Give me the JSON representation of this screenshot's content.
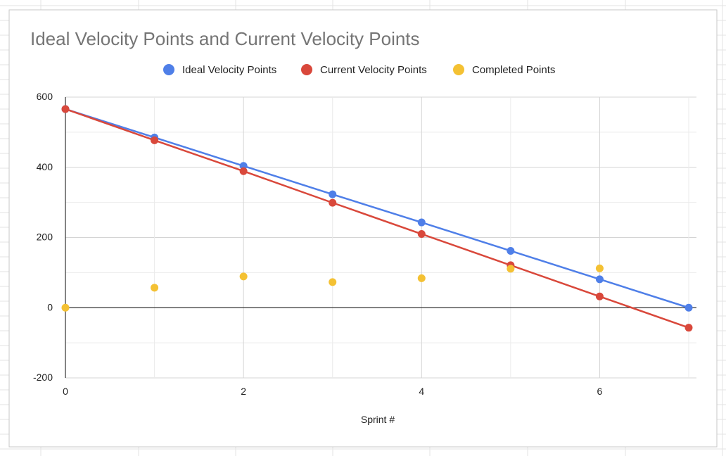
{
  "chart_data": {
    "type": "line",
    "title": "Ideal Velocity Points and Current Velocity Points",
    "xlabel": "Sprint #",
    "ylabel": "",
    "xlim": [
      0,
      7
    ],
    "ylim": [
      -200,
      600
    ],
    "x_ticks": [
      0,
      2,
      4,
      6
    ],
    "y_ticks": [
      -200,
      0,
      200,
      400,
      600
    ],
    "grid": true,
    "legend_position": "top",
    "series": [
      {
        "name": "Ideal Velocity Points",
        "color": "#4f7fe8",
        "mode": "line+markers",
        "x": [
          0,
          1,
          2,
          3,
          4,
          5,
          6,
          7
        ],
        "values": [
          566,
          485,
          404,
          323,
          243,
          162,
          81,
          0
        ]
      },
      {
        "name": "Current Velocity Points",
        "color": "#d9483b",
        "mode": "line+markers",
        "x": [
          0,
          1,
          2,
          3,
          4,
          5,
          6,
          7
        ],
        "values": [
          566,
          477,
          389,
          299,
          210,
          121,
          32,
          -57
        ]
      },
      {
        "name": "Completed Points",
        "color": "#f4c133",
        "mode": "markers",
        "x": [
          0,
          1,
          2,
          3,
          4,
          5,
          6
        ],
        "values": [
          0,
          57,
          89,
          73,
          84,
          111,
          112
        ]
      }
    ]
  }
}
